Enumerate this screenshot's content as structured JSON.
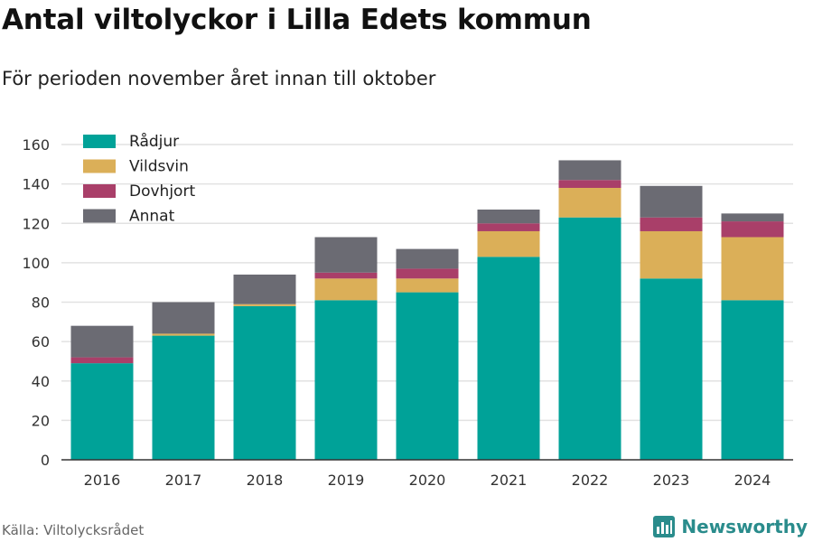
{
  "header": {
    "title": "Antal viltolyckor i Lilla Edets kommun",
    "subtitle": "För perioden november året innan till oktober"
  },
  "footer": {
    "source": "Källa: Viltolycksrådet",
    "brand": "Newsworthy"
  },
  "chart_data": {
    "type": "bar",
    "stacked": true,
    "title": "Antal viltolyckor i Lilla Edets kommun",
    "subtitle": "För perioden november året innan till oktober",
    "xlabel": "",
    "ylabel": "",
    "categories": [
      "2016",
      "2017",
      "2018",
      "2019",
      "2020",
      "2021",
      "2022",
      "2023",
      "2024"
    ],
    "ylim": [
      0,
      160
    ],
    "yticks": [
      0,
      20,
      40,
      60,
      80,
      100,
      120,
      140,
      160
    ],
    "grid": true,
    "legend_position": "top-left",
    "series": [
      {
        "name": "Rådjur",
        "color": "#00a298",
        "values": [
          49,
          63,
          78,
          81,
          85,
          103,
          123,
          92,
          81
        ]
      },
      {
        "name": "Vildsvin",
        "color": "#dbaf58",
        "values": [
          0,
          1,
          1,
          11,
          7,
          13,
          15,
          24,
          32
        ]
      },
      {
        "name": "Dovhjort",
        "color": "#a93f69",
        "values": [
          3,
          0,
          0,
          3,
          5,
          4,
          4,
          7,
          8
        ]
      },
      {
        "name": "Annat",
        "color": "#6b6b73",
        "values": [
          16,
          16,
          15,
          18,
          10,
          7,
          10,
          16,
          4
        ]
      }
    ]
  }
}
